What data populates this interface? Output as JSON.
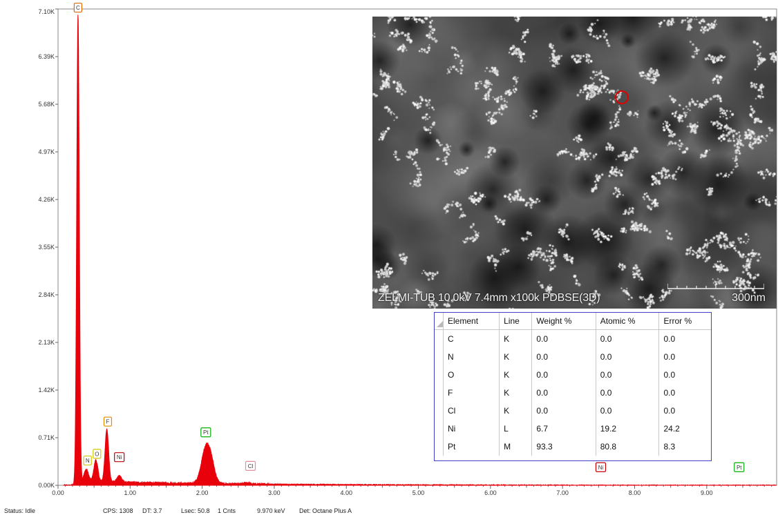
{
  "chart_data": {
    "type": "line",
    "xlabel": "",
    "ylabel": "",
    "xlim": [
      0.0,
      9.97
    ],
    "ylim": [
      0,
      7.1
    ],
    "x_ticks": [
      "0.00",
      "1.00",
      "2.00",
      "3.00",
      "4.00",
      "5.00",
      "6.00",
      "7.00",
      "8.00",
      "9.00"
    ],
    "x_tick_values": [
      0,
      1,
      2,
      3,
      4,
      5,
      6,
      7,
      8,
      9
    ],
    "y_ticks": [
      "0.00K",
      "0.71K",
      "1.42K",
      "2.13K",
      "2.84K",
      "3.55K",
      "4.26K",
      "4.97K",
      "5.68K",
      "6.39K",
      "7.10K"
    ],
    "y_tick_values": [
      0,
      0.71,
      1.42,
      2.13,
      2.84,
      3.55,
      4.26,
      4.97,
      5.68,
      6.39,
      7.1
    ],
    "series_color": "#e8000b",
    "peaks": [
      {
        "x": 0.277,
        "height": 7.0,
        "width": 0.018
      },
      {
        "x": 0.392,
        "height": 0.18,
        "width": 0.03
      },
      {
        "x": 0.525,
        "height": 0.32,
        "width": 0.028
      },
      {
        "x": 0.677,
        "height": 0.78,
        "width": 0.025
      },
      {
        "x": 0.851,
        "height": 0.1,
        "width": 0.03
      },
      {
        "x": 2.05,
        "height": 0.52,
        "width": 0.06
      },
      {
        "x": 2.13,
        "height": 0.22,
        "width": 0.05
      },
      {
        "x": 2.62,
        "height": 0.02,
        "width": 0.04
      }
    ],
    "peak_labels": [
      {
        "text": "C",
        "x": 0.277,
        "y": 6.95,
        "color": "#e06b00"
      },
      {
        "text": "N",
        "x": 0.41,
        "y": 0.2,
        "color": "#d4c800"
      },
      {
        "text": "O",
        "x": 0.54,
        "y": 0.3,
        "color": "#d4c800"
      },
      {
        "text": "F",
        "x": 0.69,
        "y": 0.78,
        "color": "#e08c00"
      },
      {
        "text": "Ni",
        "x": 0.85,
        "y": 0.25,
        "color": "#c00000"
      },
      {
        "text": "Pt",
        "x": 2.05,
        "y": 0.62,
        "color": "#00b000"
      },
      {
        "text": "Cl",
        "x": 2.67,
        "y": 0.12,
        "color": "#e68ca0"
      },
      {
        "text": "Ni",
        "x": 7.53,
        "y": 0.1,
        "color": "#c00000"
      },
      {
        "text": "Pt",
        "x": 9.45,
        "y": 0.1,
        "color": "#00b000"
      }
    ]
  },
  "image": {
    "caption": "ZELMI-TUB 10.0kV 7.4mm x100k PDBSE(3D)",
    "scale_label": "300nm"
  },
  "results_table": {
    "headers": [
      "Element",
      "Line",
      "Weight %",
      "Atomic %",
      "Error %"
    ],
    "rows": [
      [
        "C",
        "K",
        "0.0",
        "0.0",
        "0.0"
      ],
      [
        "N",
        "K",
        "0.0",
        "0.0",
        "0.0"
      ],
      [
        "O",
        "K",
        "0.0",
        "0.0",
        "0.0"
      ],
      [
        "F",
        "K",
        "0.0",
        "0.0",
        "0.0"
      ],
      [
        "Cl",
        "K",
        "0.0",
        "0.0",
        "0.0"
      ],
      [
        "Ni",
        "L",
        "6.7",
        "19.2",
        "24.2"
      ],
      [
        "Pt",
        "M",
        "93.3",
        "80.8",
        "8.3"
      ]
    ]
  },
  "status_bar": {
    "status": "Status: Idle",
    "cps": "CPS: 1308",
    "dt": "DT: 3.7",
    "lsec": "Lsec: 50.8",
    "cnts": "1 Cnts",
    "kev": "9.970 keV",
    "det": "Det: Octane Plus A"
  }
}
